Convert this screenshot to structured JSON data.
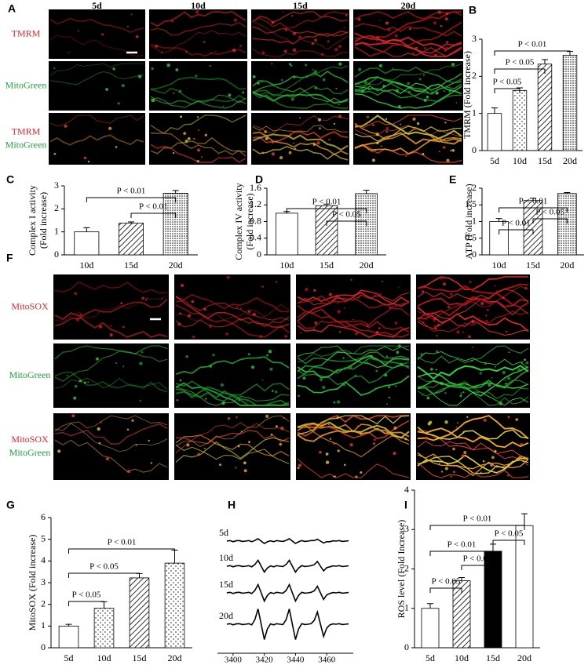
{
  "panel_labels": [
    "A",
    "B",
    "C",
    "D",
    "E",
    "F",
    "G",
    "H",
    "I"
  ],
  "image_panels": [
    {
      "columns": [
        "5d",
        "10d",
        "15d",
        "20d"
      ],
      "rows": [
        [
          {
            "text": "TMRM",
            "color": "#e8262b"
          }
        ],
        [
          {
            "text": "MitoGreen",
            "color": "#1fa33a"
          }
        ],
        [
          {
            "text": "TMRM",
            "color": "#e8262b"
          },
          {
            "text": "MitoGreen",
            "color": "#1fa33a"
          }
        ]
      ]
    },
    {
      "rows": [
        [
          {
            "text": "MitoSOX",
            "color": "#e8262b"
          }
        ],
        [
          {
            "text": "MitoGreen",
            "color": "#1fa33a"
          }
        ],
        [
          {
            "text": "MitoSOX",
            "color": "#e8262b"
          },
          {
            "text": "MitoGreen",
            "color": "#1fa33a"
          }
        ]
      ]
    }
  ],
  "chart_data": [
    {
      "type": "bar",
      "ylabel": [
        "TMRM (Fold increase)"
      ],
      "categories": [
        "5d",
        "10d",
        "15d",
        "20d"
      ],
      "values": [
        1.0,
        1.62,
        2.33,
        2.57
      ],
      "errors": [
        0.15,
        0.07,
        0.12,
        0.1
      ],
      "fills": [
        "white",
        "dots",
        "hatch",
        "dense"
      ],
      "ylim": [
        0,
        3
      ],
      "yticks": [
        0,
        1,
        2,
        3
      ],
      "annotations": [
        "P < 0.05",
        "P < 0.05",
        "P < 0.01"
      ]
    },
    {
      "type": "bar",
      "ylabel": [
        "Complex I activity",
        "(Fold increase)"
      ],
      "categories": [
        "10d",
        "15d",
        "20d"
      ],
      "values": [
        1.0,
        1.38,
        2.68
      ],
      "errors": [
        0.18,
        0.05,
        0.12
      ],
      "fills": [
        "white",
        "hatch",
        "dense"
      ],
      "ylim": [
        0,
        3
      ],
      "yticks": [
        0,
        1,
        2,
        3
      ],
      "annotations": [
        "P < 0.01",
        "P < 0.01"
      ]
    },
    {
      "type": "bar",
      "ylabel": [
        "Complex IV activity",
        "(Fold increase)"
      ],
      "categories": [
        "10d",
        "15d",
        "20d"
      ],
      "values": [
        1.0,
        1.18,
        1.47
      ],
      "errors": [
        0.04,
        0.04,
        0.08
      ],
      "fills": [
        "white",
        "hatch",
        "dense"
      ],
      "ylim": [
        0,
        1.6
      ],
      "yticks": [
        0,
        0.4,
        0.8,
        1.2,
        1.6
      ],
      "annotations": [
        "P < 0.01",
        "P < 0.05"
      ]
    },
    {
      "type": "bar",
      "ylabel": [
        "ATP (Fold increase)"
      ],
      "categories": [
        "10d",
        "15d",
        "20d"
      ],
      "values": [
        1.0,
        1.63,
        1.84
      ],
      "errors": [
        0.09,
        0.07,
        0.03
      ],
      "fills": [
        "white",
        "hatch",
        "dense"
      ],
      "ylim": [
        0,
        2
      ],
      "yticks": [
        0,
        0.5,
        1,
        1.5,
        2
      ],
      "annotations": [
        "P < 0.01",
        "P < 0.01",
        "P < 0.05"
      ]
    },
    {
      "type": "bar",
      "ylabel": [
        "MitoSOX (Fold increase)"
      ],
      "categories": [
        "5d",
        "10d",
        "15d",
        "20d"
      ],
      "values": [
        1.0,
        1.82,
        3.22,
        3.9
      ],
      "errors": [
        0.08,
        0.3,
        0.2,
        0.6
      ],
      "fills": [
        "white",
        "dots",
        "hatch",
        "dots"
      ],
      "ylim": [
        0,
        6
      ],
      "yticks": [
        0,
        1,
        2,
        3,
        4,
        5,
        6
      ],
      "annotations": [
        "P < 0.05",
        "P < 0.05",
        "P < 0.01"
      ]
    },
    {
      "type": "line",
      "color": "#000000",
      "x": [
        3396,
        3398,
        3400,
        3402,
        3404,
        3406,
        3408,
        3410,
        3412,
        3414,
        3416,
        3418,
        3420,
        3422,
        3424,
        3426,
        3428,
        3430,
        3432,
        3434,
        3436,
        3438,
        3440,
        3442,
        3444,
        3446,
        3448,
        3450,
        3452,
        3454,
        3456,
        3458,
        3460,
        3462,
        3464,
        3466,
        3468,
        3470,
        3472,
        3474
      ],
      "series": [
        {
          "name": "5d",
          "values": [
            0,
            0.1,
            -0.1,
            0.05,
            0.1,
            -0.05,
            0,
            0.1,
            -0.1,
            0.12,
            0.4,
            0,
            -0.4,
            -0.12,
            0.05,
            -0.1,
            0.1,
            0,
            -0.05,
            0.12,
            0.4,
            0,
            -0.4,
            -0.12,
            0.1,
            -0.05,
            0,
            0.1,
            0.1,
            0.32,
            0,
            -0.32,
            -0.1,
            -0.1,
            0.05,
            0,
            0.1,
            -0.05,
            0,
            0.05
          ]
        },
        {
          "name": "10d",
          "values": [
            0,
            0.1,
            -0.1,
            0.05,
            0.1,
            -0.05,
            0,
            0.1,
            -0.1,
            0.3,
            1,
            0,
            -1,
            -0.3,
            0.05,
            -0.1,
            0.1,
            0,
            -0.05,
            0.3,
            1,
            0,
            -1,
            -0.3,
            0.1,
            -0.05,
            0,
            0.1,
            0.25,
            0.8,
            0,
            -0.8,
            -0.25,
            -0.1,
            0.05,
            0,
            0.1,
            -0.05,
            0,
            0.05
          ]
        },
        {
          "name": "15d",
          "values": [
            0,
            0.1,
            -0.1,
            0.05,
            0.1,
            -0.05,
            0,
            0.1,
            -0.1,
            0.42,
            1.4,
            0,
            -1.4,
            -0.42,
            0.05,
            -0.1,
            0.1,
            0,
            -0.05,
            0.42,
            1.4,
            0,
            -1.4,
            -0.42,
            0.1,
            -0.05,
            0,
            0.1,
            0.35,
            1.12,
            0,
            -1.12,
            -0.35,
            -0.1,
            0.05,
            0,
            0.1,
            -0.05,
            0,
            0.05
          ]
        },
        {
          "name": "20d",
          "values": [
            0,
            0.1,
            -0.1,
            0.05,
            0.1,
            -0.05,
            0,
            0.1,
            -0.1,
            0.78,
            2.6,
            0,
            -2.6,
            -0.78,
            0.05,
            -0.1,
            0.1,
            0,
            -0.05,
            0.78,
            2.6,
            0,
            -2.6,
            -0.78,
            0.1,
            -0.05,
            0,
            0.1,
            0.65,
            2.08,
            0,
            -2.08,
            -0.65,
            -0.1,
            0.05,
            0,
            0.1,
            -0.05,
            0,
            0.05
          ]
        }
      ],
      "xlim": [
        3390,
        3477
      ],
      "xticks": [
        3400,
        3420,
        3440,
        3460
      ]
    },
    {
      "type": "bar",
      "ylabel": [
        "ROS level (Fold Increase)"
      ],
      "categories": [
        "5d",
        "10d",
        "15d",
        "20d"
      ],
      "values": [
        1.0,
        1.7,
        2.45,
        3.1
      ],
      "errors": [
        0.12,
        0.08,
        0.18,
        0.3
      ],
      "fills": [
        "white",
        "hatch",
        "black",
        "white"
      ],
      "ylim": [
        0,
        4
      ],
      "yticks": [
        0,
        1,
        2,
        3,
        4
      ],
      "annotations": [
        "P < 0.01",
        "P < 0.01",
        "P < 0.05",
        "P < 0.05",
        "P < 0.05"
      ]
    }
  ]
}
